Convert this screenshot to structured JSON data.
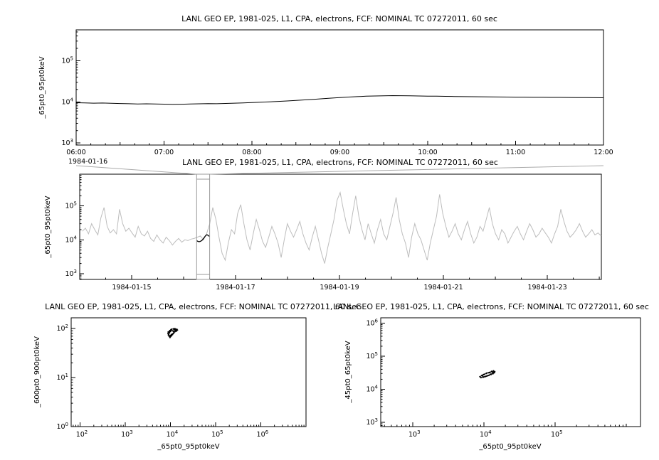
{
  "colors": {
    "axis": "#000000",
    "detail_series": "#000000",
    "context_series": "#bdbdbd",
    "highlight_series": "#000000",
    "connector": "#aaaaaa",
    "selection_box": "#999999",
    "scatter_points": "#000000"
  },
  "chart_data": [
    {
      "id": "timeseries-detail",
      "type": "line",
      "title": "LANL GEO EP, 1981-025, L1, CPA, electrons, FCF: NOMINAL TC 07272011, 60 sec",
      "ylabel": "_65pt0_95pt0keV",
      "y_axis": {
        "scale": "log",
        "tick_exponents": [
          3,
          4,
          5
        ],
        "range_log10": [
          2.95,
          5.75
        ]
      },
      "x_axis": {
        "type": "time",
        "date": "1984-01-16",
        "tick_labels": [
          "06:00",
          "07:00",
          "08:00",
          "09:00",
          "10:00",
          "11:00",
          "12:00"
        ],
        "tick_hours": [
          6,
          7,
          8,
          9,
          10,
          11,
          12
        ],
        "range_hours": [
          6,
          12
        ]
      },
      "series": [
        {
          "name": "detail-line",
          "color": "#000000",
          "width": 1,
          "x_start": 6.0,
          "x_step": 0.1,
          "values": [
            9500,
            9400,
            9300,
            9350,
            9200,
            9100,
            9000,
            8900,
            8950,
            8850,
            8800,
            8700,
            8750,
            8850,
            8950,
            9050,
            9000,
            9150,
            9300,
            9450,
            9600,
            9800,
            10000,
            10250,
            10500,
            10800,
            11150,
            11500,
            11900,
            12300,
            12700,
            13100,
            13400,
            13700,
            13900,
            14050,
            14150,
            14100,
            14000,
            13900,
            13800,
            13700,
            13600,
            13500,
            13400,
            13350,
            13300,
            13200,
            13150,
            13100,
            13000,
            12950,
            12900,
            12850,
            12800,
            12800,
            12750,
            12700,
            12650,
            12600,
            12550
          ]
        }
      ]
    },
    {
      "id": "timeseries-context",
      "type": "line",
      "title": "LANL GEO EP, 1981-025, L1, CPA, electrons, FCF: NOMINAL TC 07272011, 60 sec",
      "ylabel": "_65pt0_95pt0keV",
      "y_axis": {
        "scale": "log",
        "tick_exponents": [
          3,
          4,
          5
        ],
        "range_log10": [
          2.83,
          5.94
        ]
      },
      "x_axis": {
        "type": "date",
        "tick_labels": [
          "1984-01-15",
          "1984-01-17",
          "1984-01-19",
          "1984-01-21",
          "1984-01-23"
        ],
        "tick_days": [
          15,
          17,
          19,
          21,
          23
        ],
        "range_days": [
          14.0,
          24.04
        ]
      },
      "selection": {
        "x0_day": 16.25,
        "x1_day": 16.5
      },
      "series": [
        {
          "name": "context-line",
          "color": "#bdbdbd",
          "width": 1,
          "x_start": 14.05,
          "x_step": 0.0598,
          "values": [
            18000,
            22000,
            15000,
            30000,
            20000,
            14000,
            45000,
            90000,
            25000,
            16000,
            20000,
            15000,
            80000,
            30000,
            18000,
            22000,
            16000,
            12000,
            25000,
            15000,
            13000,
            18000,
            11000,
            9000,
            14000,
            10000,
            8000,
            12000,
            9500,
            7000,
            9000,
            11000,
            8500,
            10000,
            9500,
            10500,
            11000,
            12000,
            13000,
            10000,
            15000,
            30000,
            90000,
            40000,
            12000,
            4000,
            2500,
            8000,
            20000,
            15000,
            60000,
            110000,
            30000,
            10000,
            5000,
            15000,
            40000,
            20000,
            9000,
            6000,
            12000,
            25000,
            15000,
            8000,
            3000,
            10000,
            30000,
            18000,
            12000,
            20000,
            35000,
            15000,
            8000,
            5000,
            12000,
            25000,
            10000,
            4000,
            2000,
            6000,
            15000,
            40000,
            150000,
            250000,
            80000,
            30000,
            15000,
            60000,
            200000,
            50000,
            20000,
            10000,
            30000,
            15000,
            8000,
            20000,
            40000,
            15000,
            10000,
            25000,
            60000,
            180000,
            40000,
            15000,
            8000,
            3000,
            12000,
            30000,
            15000,
            10000,
            5000,
            2500,
            8000,
            20000,
            50000,
            220000,
            60000,
            25000,
            12000,
            18000,
            30000,
            15000,
            10000,
            20000,
            35000,
            15000,
            8000,
            12000,
            25000,
            18000,
            40000,
            90000,
            30000,
            15000,
            10000,
            20000,
            15000,
            8000,
            12000,
            18000,
            25000,
            15000,
            10000,
            18000,
            30000,
            20000,
            12000,
            15000,
            22000,
            16000,
            12000,
            8000,
            15000,
            25000,
            80000,
            35000,
            18000,
            12000,
            15000,
            20000,
            30000,
            18000,
            12000,
            15000,
            20000,
            14000,
            16000,
            13000
          ]
        },
        {
          "name": "highlight-line",
          "color": "#000000",
          "width": 1.3,
          "x_start": 16.25,
          "x_step": 0.025,
          "values": [
            9500,
            9000,
            8800,
            9050,
            9600,
            10500,
            11900,
            13400,
            14150,
            13300,
            12550
          ]
        }
      ]
    },
    {
      "id": "scatter-600-900",
      "type": "scatter",
      "title": "LANL GEO EP, 1981-025, L1, CPA, electrons, FCF: NOMINAL TC 07272011, 60 sec",
      "xlabel": "_65pt0_95pt0keV",
      "ylabel": "_600pt0_900pt0keV",
      "x_axis": {
        "scale": "log",
        "tick_exponents": [
          2,
          3,
          4,
          5,
          6
        ],
        "range_log10": [
          1.8,
          7.0
        ]
      },
      "y_axis": {
        "scale": "log",
        "tick_exponents": [
          0,
          1,
          2
        ],
        "range_log10": [
          0,
          2.22
        ]
      },
      "points": [
        [
          9500,
          85
        ],
        [
          9800,
          90
        ],
        [
          10200,
          95
        ],
        [
          10800,
          92
        ],
        [
          11500,
          88
        ],
        [
          12000,
          95
        ],
        [
          12500,
          100
        ],
        [
          13000,
          96
        ],
        [
          12600,
          88
        ],
        [
          11800,
          82
        ],
        [
          11000,
          78
        ],
        [
          10400,
          75
        ],
        [
          9900,
          72
        ],
        [
          9400,
          70
        ],
        [
          9000,
          74
        ],
        [
          8800,
          79
        ],
        [
          8900,
          85
        ],
        [
          9600,
          91
        ],
        [
          10500,
          97
        ],
        [
          11600,
          99
        ],
        [
          12800,
          94
        ],
        [
          13500,
          89
        ],
        [
          14200,
          93
        ],
        [
          13800,
          97
        ],
        [
          13200,
          91
        ],
        [
          12400,
          86
        ],
        [
          11700,
          80
        ],
        [
          11100,
          76
        ],
        [
          10600,
          72
        ],
        [
          10100,
          69
        ],
        [
          9700,
          66
        ],
        [
          9300,
          70
        ],
        [
          9100,
          76
        ],
        [
          9500,
          82
        ],
        [
          10000,
          88
        ]
      ]
    },
    {
      "id": "scatter-45-65",
      "type": "scatter",
      "title": "LANL GEO EP, 1981-025, L1, CPA, electrons, FCF: NOMINAL TC 07272011, 60 sec",
      "xlabel": "_65pt0_95pt0keV",
      "ylabel": "_45pt0_65pt0keV",
      "x_axis": {
        "scale": "log",
        "tick_exponents": [
          3,
          4,
          5
        ],
        "range_log10": [
          2.55,
          6.2
        ]
      },
      "y_axis": {
        "scale": "log",
        "tick_exponents": [
          3,
          4,
          5,
          6
        ],
        "range_log10": [
          2.87,
          6.16
        ]
      },
      "points": [
        [
          9500,
          26000
        ],
        [
          9800,
          27500
        ],
        [
          10200,
          28500
        ],
        [
          10800,
          30000
        ],
        [
          11500,
          31500
        ],
        [
          12200,
          32500
        ],
        [
          12900,
          34000
        ],
        [
          13500,
          33000
        ],
        [
          14000,
          31500
        ],
        [
          13400,
          29500
        ],
        [
          12600,
          28000
        ],
        [
          11800,
          26500
        ],
        [
          11000,
          25000
        ],
        [
          10300,
          24000
        ],
        [
          9700,
          23000
        ],
        [
          9100,
          22500
        ],
        [
          8800,
          24000
        ],
        [
          9300,
          26000
        ],
        [
          10000,
          28000
        ],
        [
          10900,
          30500
        ],
        [
          11900,
          32000
        ],
        [
          12800,
          34500
        ],
        [
          13600,
          36000
        ],
        [
          14200,
          34000
        ],
        [
          13300,
          31000
        ],
        [
          12300,
          28500
        ],
        [
          11400,
          26000
        ],
        [
          10600,
          24500
        ],
        [
          9900,
          23500
        ],
        [
          9500,
          25500
        ]
      ]
    }
  ]
}
